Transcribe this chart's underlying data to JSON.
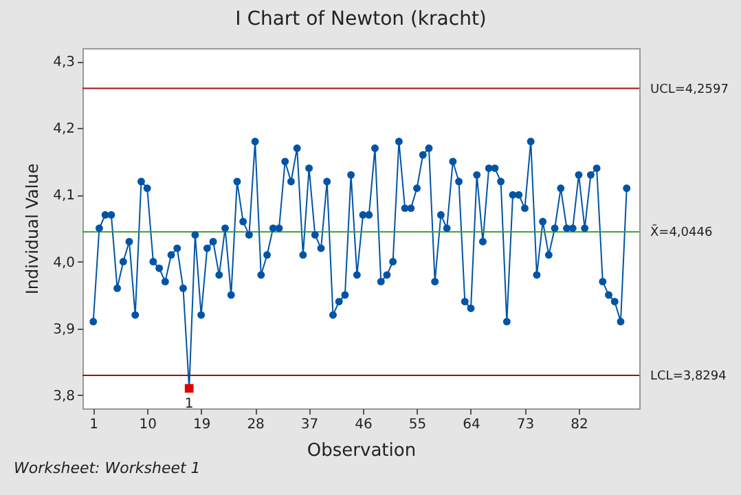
{
  "chart_data": {
    "type": "line",
    "title": "I Chart of Newton (kracht)",
    "xlabel": "Observation",
    "ylabel": "Individual Value",
    "x": [
      1,
      2,
      3,
      4,
      5,
      6,
      7,
      8,
      9,
      10,
      11,
      12,
      13,
      14,
      15,
      16,
      17,
      18,
      19,
      20,
      21,
      22,
      23,
      24,
      25,
      26,
      27,
      28,
      29,
      30,
      31,
      32,
      33,
      34,
      35,
      36,
      37,
      38,
      39,
      40,
      41,
      42,
      43,
      44,
      45,
      46,
      47,
      48,
      49,
      50,
      51,
      52,
      53,
      54,
      55,
      56,
      57,
      58,
      59,
      60,
      61,
      62,
      63,
      64,
      65,
      66,
      67,
      68,
      69,
      70,
      71,
      72,
      73,
      74,
      75,
      76,
      77,
      78,
      79,
      80,
      81,
      82,
      83,
      84,
      85,
      86,
      87,
      88,
      89,
      90
    ],
    "series": [
      {
        "color": "#0054a6",
        "marker": "circle",
        "values": [
          3.91,
          4.05,
          4.07,
          4.07,
          3.96,
          4.0,
          4.03,
          3.92,
          4.12,
          4.11,
          4.0,
          3.99,
          3.97,
          4.01,
          4.02,
          3.96,
          3.81,
          4.04,
          3.92,
          4.02,
          4.03,
          3.98,
          4.05,
          3.95,
          4.12,
          4.06,
          4.04,
          4.18,
          3.98,
          4.01,
          4.05,
          4.05,
          4.15,
          4.12,
          4.17,
          4.01,
          4.14,
          4.04,
          4.02,
          4.12,
          3.92,
          3.94,
          3.95,
          4.13,
          3.98,
          4.07,
          4.07,
          4.17,
          3.97,
          3.98,
          4.0,
          4.18,
          4.08,
          4.08,
          4.11,
          4.16,
          4.17,
          3.97,
          4.07,
          4.05,
          4.15,
          4.12,
          3.94,
          3.93,
          4.13,
          4.03,
          4.14,
          4.14,
          4.12,
          3.91,
          4.1,
          4.1,
          4.08,
          4.18,
          3.98,
          4.06,
          4.01,
          4.05,
          4.11,
          4.05,
          4.05,
          4.13,
          4.05,
          4.13,
          4.14,
          3.97,
          3.95,
          3.94,
          3.91,
          4.11
        ]
      },
      {
        "type": "scatter",
        "color": "#e00000",
        "marker": "square",
        "x": [
          17
        ],
        "values": [
          3.81
        ]
      }
    ],
    "xlim": [
      -0.8,
      92.1
    ],
    "ylim": [
      3.78,
      4.32
    ],
    "xticks": [
      1,
      10,
      19,
      28,
      37,
      46,
      55,
      64,
      73,
      82
    ],
    "yticks": [
      {
        "value": 3.8,
        "label": "3,8"
      },
      {
        "value": 3.9,
        "label": "3,9"
      },
      {
        "value": 4.0,
        "label": "4,0"
      },
      {
        "value": 4.1,
        "label": "4,1"
      },
      {
        "value": 4.2,
        "label": "4,2"
      },
      {
        "value": 4.3,
        "label": "4,3"
      }
    ],
    "ref_lines": [
      {
        "axis": "y",
        "value": 4.2597,
        "label": "UCL=4,2597",
        "color": "#a50f15"
      },
      {
        "axis": "y",
        "value": 4.0446,
        "label": "X̄=4,0446",
        "color": "#33a02c"
      },
      {
        "axis": "y",
        "value": 3.8294,
        "label": "LCL=3,8294",
        "color": "#a50f15"
      }
    ],
    "annotations": [
      {
        "text": "1",
        "x": 17,
        "y": 3.81
      },
      "Worksheet: Worksheet 1"
    ],
    "grid": false
  }
}
